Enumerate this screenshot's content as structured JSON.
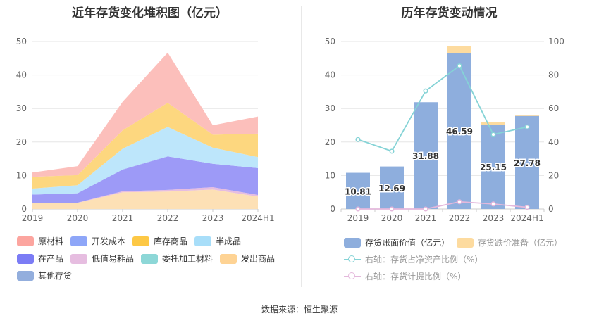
{
  "chart_data": [
    {
      "type": "area",
      "stacked": true,
      "title": "近年存货变化堆积图（亿元）",
      "categories": [
        "2019",
        "2020",
        "2021",
        "2022",
        "2023",
        "2024H1"
      ],
      "ylim": [
        0,
        50
      ],
      "yticks": [
        0,
        10,
        20,
        30,
        40,
        50
      ],
      "series": [
        {
          "name": "发出商品",
          "color": "#fde0b5",
          "values": [
            1.8,
            1.8,
            5.0,
            5.2,
            5.8,
            3.7
          ]
        },
        {
          "name": "低值易耗品",
          "color": "#e6bde0",
          "values": [
            0.1,
            0.1,
            0.3,
            0.5,
            0.7,
            0.5
          ]
        },
        {
          "name": "在产品",
          "color": "#9d9af7",
          "values": [
            2.4,
            2.8,
            6.5,
            10.0,
            7.0,
            8.0
          ]
        },
        {
          "name": "半成品",
          "color": "#bde6fb",
          "values": [
            1.8,
            2.4,
            6.2,
            8.8,
            4.8,
            3.3
          ]
        },
        {
          "name": "库存商品",
          "color": "#fdd77f",
          "values": [
            3.5,
            3.0,
            5.5,
            7.2,
            3.9,
            7.0
          ]
        },
        {
          "name": "原材料",
          "color": "#fcbfbb",
          "values": [
            1.3,
            2.7,
            8.5,
            15.0,
            2.8,
            5.1
          ]
        },
        {
          "name": "开发成本",
          "color": "#8ea6f8",
          "values": [
            0,
            0,
            0,
            0,
            0,
            0
          ]
        },
        {
          "name": "委托加工材料",
          "color": "#8dd7d7",
          "values": [
            0,
            0,
            0,
            0,
            0,
            0
          ]
        },
        {
          "name": "其他存货",
          "color": "#93aedd",
          "values": [
            0,
            0,
            0,
            0,
            0,
            0
          ]
        }
      ],
      "legend": [
        {
          "label": "原材料",
          "color": "#fca59f"
        },
        {
          "label": "开发成本",
          "color": "#8ea6f8"
        },
        {
          "label": "库存商品",
          "color": "#fdc845"
        },
        {
          "label": "半成品",
          "color": "#a8def9"
        },
        {
          "label": "在产品",
          "color": "#7b7cf5"
        },
        {
          "label": "低值易耗品",
          "color": "#e6bde0"
        },
        {
          "label": "委托加工材料",
          "color": "#8dd7d7"
        },
        {
          "label": "发出商品",
          "color": "#fed394"
        },
        {
          "label": "其他存货",
          "color": "#93aedd"
        }
      ]
    },
    {
      "type": "bar+line",
      "title": "历年存货变动情况",
      "categories": [
        "2019",
        "2020",
        "2021",
        "2022",
        "2023",
        "2024H1"
      ],
      "ylim": [
        0,
        50
      ],
      "yticks": [
        0,
        10,
        20,
        30,
        40,
        50
      ],
      "y2lim": [
        0,
        100
      ],
      "y2ticks": [
        0,
        20,
        40,
        60,
        80,
        100
      ],
      "bars": [
        {
          "name": "存货账面价值（亿元）",
          "color": "#8eaedd",
          "values": [
            10.81,
            12.69,
            31.88,
            46.59,
            25.15,
            27.78
          ],
          "labels": [
            "10.81",
            "12.69",
            "31.88",
            "46.59",
            "25.15",
            "27.78"
          ]
        },
        {
          "name": "存货跌价准备（亿元）",
          "color": "#fddb9f",
          "values": [
            0,
            0,
            0,
            2.1,
            0.8,
            0.3
          ]
        }
      ],
      "lines": [
        {
          "name": "右轴：存货占净资产比例（%）",
          "color": "#85d3d6",
          "values": [
            41.5,
            34.5,
            70.5,
            85.5,
            44.5,
            49
          ]
        },
        {
          "name": "右轴：存货计提比例（%）",
          "color": "#e4b8dc",
          "values": [
            0,
            0,
            0,
            4.3,
            3.0,
            1.0
          ]
        }
      ]
    }
  ],
  "source": "数据来源：恒生聚源"
}
